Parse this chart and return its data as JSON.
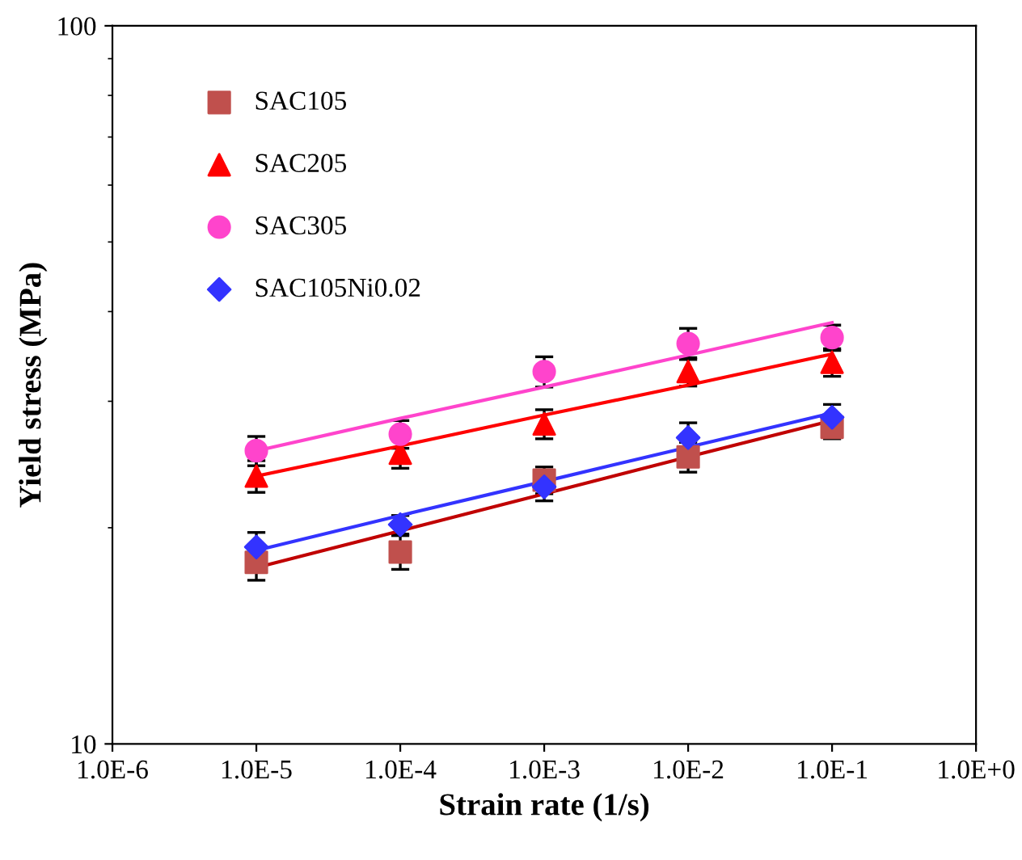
{
  "chart_data": {
    "type": "scatter",
    "xlabel": "Strain rate (1/s)",
    "ylabel": "Yield stress (MPa)",
    "log": "xy",
    "xlim": [
      1e-06,
      1
    ],
    "ylim": [
      10,
      100
    ],
    "xticks": [
      {
        "value": 1e-06,
        "label": "1.0E-6"
      },
      {
        "value": 1e-05,
        "label": "1.0E-5"
      },
      {
        "value": 0.0001,
        "label": "1.0E-4"
      },
      {
        "value": 0.001,
        "label": "1.0E-3"
      },
      {
        "value": 0.01,
        "label": "1.0E-2"
      },
      {
        "value": 0.1,
        "label": "1.0E-1"
      },
      {
        "value": 1,
        "label": "1.0E+0"
      }
    ],
    "yticks": [
      10,
      100
    ],
    "grid": false,
    "legend": "top left",
    "x": [
      1e-05,
      0.0001,
      0.001,
      0.01,
      0.1
    ],
    "series": [
      {
        "name": "SAC105",
        "color": "#c0504d",
        "marker": "square",
        "values": [
          17.9,
          18.5,
          23.3,
          25.1,
          27.6
        ],
        "errors": [
          1.0,
          1.0,
          1.0,
          1.2,
          1.0
        ]
      },
      {
        "name": "SAC205",
        "color": "#ff0000",
        "marker": "triangle",
        "values": [
          23.6,
          25.4,
          27.9,
          33.0,
          34.0
        ],
        "errors": [
          1.2,
          1.2,
          1.3,
          1.5,
          1.5
        ]
      },
      {
        "name": "SAC305",
        "color": "#ff44cc",
        "marker": "circle",
        "values": [
          25.6,
          27.0,
          33.0,
          36.1,
          36.8
        ],
        "errors": [
          1.2,
          1.2,
          1.6,
          1.8,
          1.5
        ]
      },
      {
        "name": "SAC105Ni0.02",
        "color": "#3333ff",
        "marker": "diamond",
        "values": [
          18.8,
          20.2,
          22.8,
          26.7,
          28.5
        ],
        "errors": [
          0.9,
          0.6,
          1.0,
          1.3,
          1.2
        ]
      },
      {
        "type": "line",
        "color": "#c00000",
        "values": [
          17.6,
          19.8,
          22.3,
          25.1,
          28.2
        ]
      },
      {
        "type": "line",
        "color": "#ff0000",
        "values": [
          23.6,
          26.0,
          28.7,
          31.6,
          34.9
        ]
      },
      {
        "type": "line",
        "color": "#ff44cc",
        "values": [
          25.6,
          28.4,
          31.4,
          34.8,
          38.6
        ]
      },
      {
        "type": "line",
        "color": "#3333ff",
        "values": [
          18.6,
          20.8,
          23.2,
          25.9,
          28.9
        ]
      }
    ]
  }
}
